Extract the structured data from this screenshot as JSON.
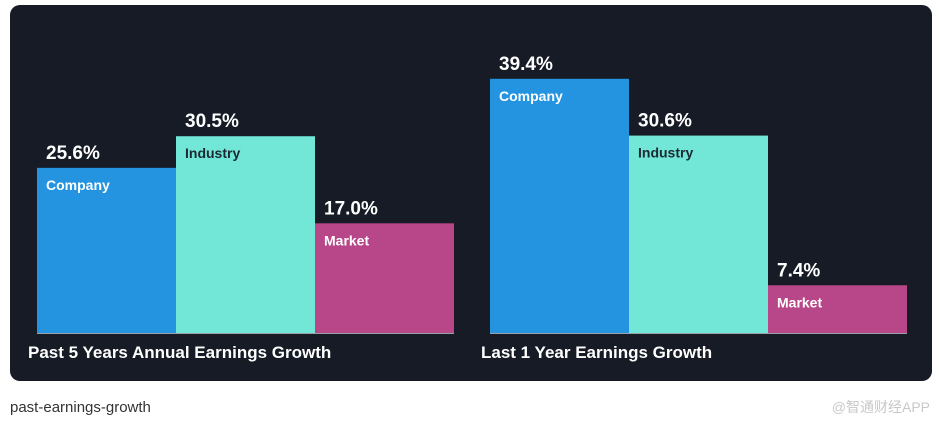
{
  "caption": "past-earnings-growth",
  "watermark": "@智通财经APP",
  "colors": {
    "panel_bg": "#161b26",
    "axis": "#9aa0a8",
    "company": "#2494e0",
    "industry": "#72e7d8",
    "market": "#b8478a"
  },
  "chart_data": [
    {
      "type": "bar",
      "title": "Past 5 Years Annual Earnings Growth",
      "categories": [
        "Company",
        "Industry",
        "Market"
      ],
      "values": [
        25.6,
        30.5,
        17.0
      ],
      "value_labels": [
        "25.6%",
        "30.5%",
        "17.0%"
      ],
      "ylim": [
        0,
        46.5
      ],
      "grid": false,
      "legend": "none"
    },
    {
      "type": "bar",
      "title": "Last 1 Year Earnings Growth",
      "categories": [
        "Company",
        "Industry",
        "Market"
      ],
      "values": [
        39.4,
        30.6,
        7.4
      ],
      "value_labels": [
        "39.4%",
        "30.6%",
        "7.4%"
      ],
      "ylim": [
        0,
        46.5
      ],
      "grid": false,
      "legend": "none"
    }
  ]
}
